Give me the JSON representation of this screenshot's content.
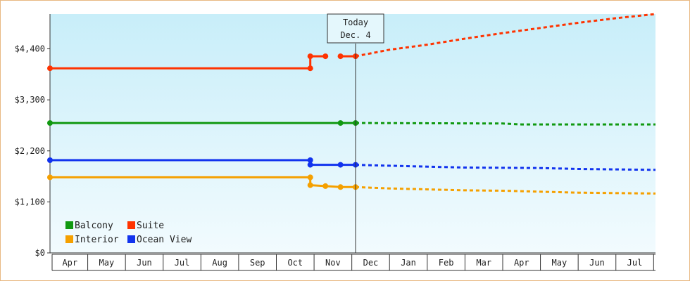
{
  "chart_data": {
    "type": "line",
    "y_ticks": [
      "$0",
      "$1,100",
      "$2,200",
      "$3,300",
      "$4,400"
    ],
    "y_tick_values": [
      0,
      1100,
      2200,
      3300,
      4400
    ],
    "ylim": [
      0,
      5150
    ],
    "months": [
      "Apr",
      "May",
      "Jun",
      "Jul",
      "Aug",
      "Sep",
      "Oct",
      "Nov",
      "Dec",
      "Jan",
      "Feb",
      "Mar",
      "Apr",
      "May",
      "Jun",
      "Jul"
    ],
    "x_range": [
      0,
      16.05
    ],
    "today": {
      "label_line1": "Today",
      "label_line2": "Dec. 4",
      "x": 8.1
    },
    "legend_placement": "bottom-left",
    "grid": false,
    "series": [
      {
        "name": "Suite",
        "color": "#ff3300",
        "segments": [
          [
            [
              0,
              3980
            ],
            [
              6.9,
              3980
            ],
            [
              6.9,
              4240
            ],
            [
              7.3,
              4240
            ]
          ],
          [
            [
              7.7,
              4240
            ],
            [
              8.1,
              4240
            ]
          ]
        ],
        "markers": [
          [
            0,
            3980
          ],
          [
            6.9,
            3980
          ],
          [
            6.9,
            4240
          ],
          [
            7.3,
            4240
          ],
          [
            7.7,
            4240
          ],
          [
            8.1,
            4240
          ]
        ],
        "forecast": [
          [
            8.1,
            4240
          ],
          [
            9,
            4380
          ],
          [
            10,
            4490
          ],
          [
            11,
            4620
          ],
          [
            12,
            4740
          ],
          [
            13,
            4850
          ],
          [
            14,
            4960
          ],
          [
            15,
            5060
          ],
          [
            16.05,
            5150
          ]
        ]
      },
      {
        "name": "Balcony",
        "color": "#119911",
        "segments": [
          [
            [
              0,
              2800
            ],
            [
              7.7,
              2800
            ],
            [
              8.1,
              2800
            ]
          ]
        ],
        "markers": [
          [
            0,
            2800
          ],
          [
            7.7,
            2800
          ],
          [
            8.1,
            2800
          ]
        ],
        "forecast": [
          [
            8.1,
            2800
          ],
          [
            12,
            2790
          ],
          [
            12.5,
            2770
          ],
          [
            16.05,
            2770
          ]
        ]
      },
      {
        "name": "Ocean View",
        "color": "#1133ee",
        "segments": [
          [
            [
              0,
              2000
            ],
            [
              6.9,
              2000
            ],
            [
              6.9,
              1900
            ],
            [
              7.7,
              1900
            ],
            [
              8.1,
              1900
            ]
          ]
        ],
        "markers": [
          [
            0,
            2000
          ],
          [
            6.9,
            2000
          ],
          [
            6.9,
            1900
          ],
          [
            7.7,
            1900
          ],
          [
            8.1,
            1900
          ]
        ],
        "forecast": [
          [
            8.1,
            1900
          ],
          [
            9,
            1880
          ],
          [
            11,
            1840
          ],
          [
            13,
            1830
          ],
          [
            14,
            1810
          ],
          [
            16.05,
            1790
          ]
        ]
      },
      {
        "name": "Interior",
        "color": "#f5a000",
        "segments": [
          [
            [
              0,
              1630
            ],
            [
              6.9,
              1630
            ],
            [
              6.9,
              1460
            ],
            [
              7.3,
              1440
            ],
            [
              7.7,
              1420
            ],
            [
              8.1,
              1420
            ]
          ]
        ],
        "markers": [
          [
            0,
            1630
          ],
          [
            6.9,
            1630
          ],
          [
            6.9,
            1460
          ],
          [
            7.3,
            1440
          ],
          [
            7.7,
            1420
          ],
          [
            8.1,
            1420
          ]
        ],
        "forecast": [
          [
            8.1,
            1420
          ],
          [
            9,
            1390
          ],
          [
            10,
            1370
          ],
          [
            11,
            1350
          ],
          [
            12,
            1340
          ],
          [
            13,
            1320
          ],
          [
            14,
            1300
          ],
          [
            16.05,
            1280
          ]
        ]
      }
    ],
    "legend": [
      {
        "label": "Balcony",
        "color": "#119911"
      },
      {
        "label": "Suite",
        "color": "#ff3300"
      },
      {
        "label": "Interior",
        "color": "#f5a000"
      },
      {
        "label": "Ocean View",
        "color": "#1133ee"
      }
    ]
  }
}
